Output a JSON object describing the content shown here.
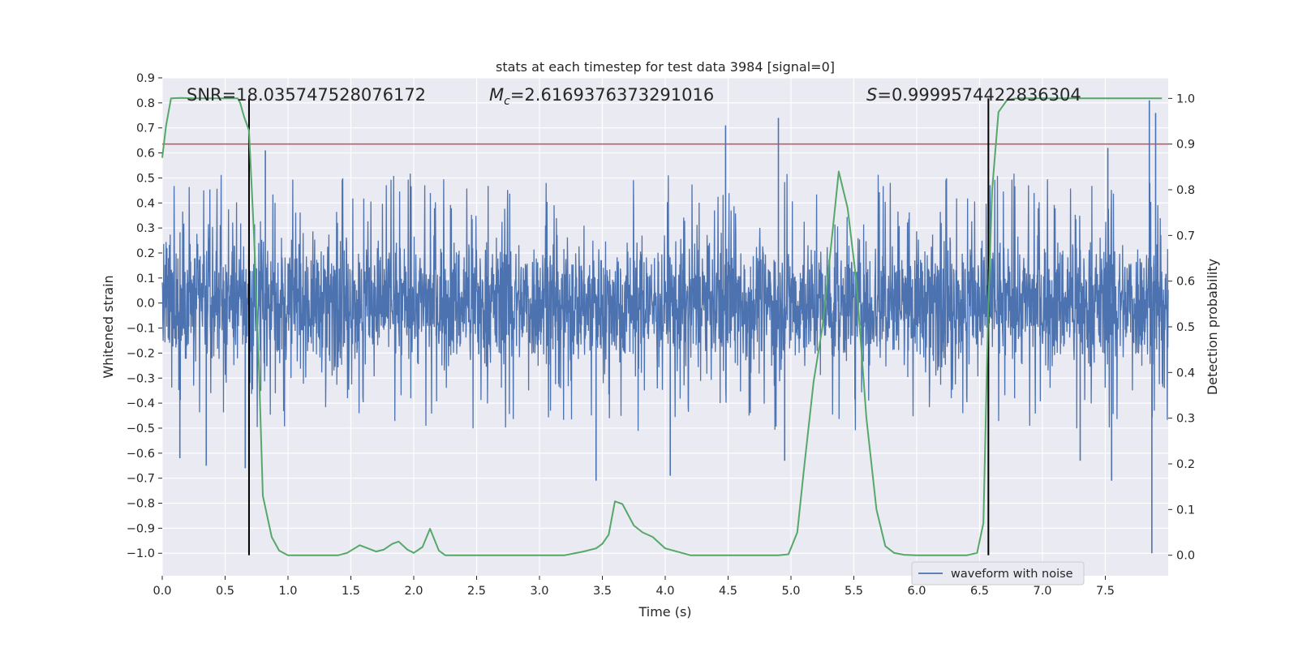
{
  "chart_data": {
    "type": "line",
    "title": "stats at each timestep for test data 3984 [signal=0]",
    "xlabel": "Time (s)",
    "ylabel": "Whitened strain",
    "y2label": "Detection probability",
    "xlim": [
      0.0,
      8.0
    ],
    "ylim": [
      -1.09,
      0.9
    ],
    "y2lim": [
      -0.045,
      1.045
    ],
    "x_ticks": [
      "0.0",
      "0.5",
      "1.0",
      "1.5",
      "2.0",
      "2.5",
      "3.0",
      "3.5",
      "4.0",
      "4.5",
      "5.0",
      "5.5",
      "6.0",
      "6.5",
      "7.0",
      "7.5"
    ],
    "y_ticks": [
      "0.9",
      "0.8",
      "0.7",
      "0.6",
      "0.5",
      "0.4",
      "0.3",
      "0.2",
      "0.1",
      "0.0",
      "−0.1",
      "−0.2",
      "−0.3",
      "−0.4",
      "−0.5",
      "−0.6",
      "−0.7",
      "−0.8",
      "−0.9",
      "−1.0"
    ],
    "y2_ticks": [
      "1.0",
      "0.9",
      "0.8",
      "0.7",
      "0.6",
      "0.5",
      "0.4",
      "0.3",
      "0.2",
      "0.1",
      "0.0"
    ],
    "annotations": {
      "snr": "SNR=18.035747528076172",
      "mc_symbol": "M",
      "mc_sub": "c",
      "mc_value": "=2.6169376373291016",
      "s_symbol": "S",
      "s_value": "=0.9999574422836304"
    },
    "threshold": {
      "value": 0.9,
      "axis": "right",
      "color": "#c44e52"
    },
    "vlines": [
      0.69,
      6.57
    ],
    "legend": {
      "position": "lower-right",
      "entries": [
        "waveform with noise"
      ]
    },
    "series": [
      {
        "name": "waveform with noise",
        "axis": "left",
        "color": "#4c72b0",
        "style": "dense noise, core band about ±0.3, spikes up to 0.81 and down to −1.0",
        "core_amplitude": 0.3,
        "spikes": [
          {
            "x": 0.82,
            "y": 0.61
          },
          {
            "x": 4.48,
            "y": 0.71
          },
          {
            "x": 4.9,
            "y": 0.74
          },
          {
            "x": 7.52,
            "y": 0.62
          },
          {
            "x": 7.85,
            "y": 0.81
          },
          {
            "x": 7.9,
            "y": 0.76
          },
          {
            "x": 3.45,
            "y": -0.71
          },
          {
            "x": 4.04,
            "y": -0.69
          },
          {
            "x": 7.55,
            "y": -0.71
          },
          {
            "x": 7.87,
            "y": -1.0
          },
          {
            "x": 0.35,
            "y": -0.65
          },
          {
            "x": 0.66,
            "y": -0.66
          },
          {
            "x": 0.14,
            "y": -0.62
          },
          {
            "x": 4.95,
            "y": -0.63
          },
          {
            "x": 7.3,
            "y": -0.63
          }
        ]
      },
      {
        "name": "Detection probability",
        "axis": "right",
        "color": "#55a868",
        "x": [
          0.0,
          0.03,
          0.07,
          0.15,
          0.25,
          0.4,
          0.5,
          0.6,
          0.62,
          0.65,
          0.69,
          0.73,
          0.77,
          0.8,
          0.87,
          0.93,
          1.0,
          1.2,
          1.4,
          1.47,
          1.57,
          1.7,
          1.76,
          1.83,
          1.88,
          1.95,
          2.0,
          2.07,
          2.13,
          2.2,
          2.25,
          2.4,
          2.6,
          2.8,
          3.0,
          3.2,
          3.35,
          3.45,
          3.5,
          3.55,
          3.6,
          3.66,
          3.75,
          3.82,
          3.9,
          4.0,
          4.2,
          4.4,
          4.6,
          4.7,
          4.8,
          4.9,
          4.98,
          5.05,
          5.1,
          5.18,
          5.25,
          5.32,
          5.38,
          5.45,
          5.52,
          5.6,
          5.68,
          5.75,
          5.82,
          5.9,
          6.0,
          6.2,
          6.4,
          6.48,
          6.53,
          6.57,
          6.6,
          6.65,
          6.72,
          6.8,
          7.0,
          7.5,
          7.95
        ],
        "values": [
          0.87,
          0.94,
          1.0,
          1.001,
          1.0,
          1.0,
          1.0,
          1.0,
          0.99,
          0.96,
          0.93,
          0.7,
          0.4,
          0.13,
          0.04,
          0.01,
          0.0,
          0.0,
          0.0,
          0.005,
          0.022,
          0.008,
          0.012,
          0.025,
          0.03,
          0.012,
          0.005,
          0.018,
          0.058,
          0.01,
          0.0,
          0.0,
          0.0,
          0.0,
          0.0,
          0.0,
          0.008,
          0.015,
          0.025,
          0.045,
          0.118,
          0.112,
          0.065,
          0.05,
          0.04,
          0.015,
          0.0,
          0.0,
          0.0,
          0.0,
          0.0,
          0.0,
          0.002,
          0.05,
          0.18,
          0.38,
          0.5,
          0.68,
          0.84,
          0.76,
          0.6,
          0.3,
          0.1,
          0.02,
          0.005,
          0.001,
          0.0,
          0.0,
          0.0,
          0.005,
          0.07,
          0.55,
          0.8,
          0.97,
          0.997,
          1.0,
          1.0,
          1.0,
          1.0
        ]
      }
    ]
  }
}
